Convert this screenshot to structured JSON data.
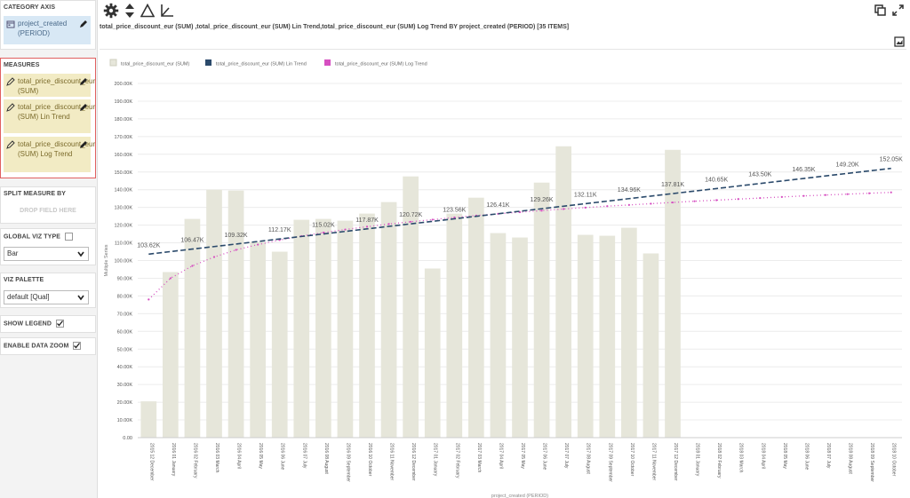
{
  "left_panel": {
    "category_axis": {
      "title": "CATEGORY AXIS",
      "field": "project_created (PERIOD)"
    },
    "measures": {
      "title": "MEASURES",
      "items": [
        {
          "label": "total_price_discount_eur (SUM)"
        },
        {
          "label": "total_price_discount_eur (SUM) Lin Trend"
        },
        {
          "label": "total_price_discount_eur (SUM) Log Trend"
        }
      ]
    },
    "split_measure": {
      "title": "SPLIT MEASURE BY",
      "drop_text": "DROP FIELD HERE"
    },
    "global_viz_type": {
      "title": "GLOBAL VIZ TYPE",
      "value": "Bar"
    },
    "viz_palette": {
      "title": "VIZ PALETTE",
      "value": "default [Qual]"
    },
    "show_legend": {
      "label": "SHOW LEGEND",
      "checked": true
    },
    "enable_data_zoom": {
      "label": "ENABLE DATA ZOOM",
      "checked": true
    }
  },
  "chart_title": "total_price_discount_eur (SUM) ,total_price_discount_eur (SUM) Lin Trend,total_price_discount_eur (SUM) Log Trend BY project_created (PERIOD) [35 ITEMS]",
  "colors": {
    "bar": "#e6e6da",
    "lin": "#2b4a6b",
    "log": "#d64fc1",
    "selected_border": "#e06060"
  },
  "chart_data": {
    "type": "bar",
    "ylabel": "Multiple Series",
    "xlabel": "project_created (PERIOD)",
    "ylim": [
      0,
      200000
    ],
    "yticks": [
      "0.00",
      "10.00K",
      "20.00K",
      "30.00K",
      "40.00K",
      "50.00K",
      "60.00K",
      "70.00K",
      "80.00K",
      "90.00K",
      "100.00K",
      "110.00K",
      "120.00K",
      "130.00K",
      "140.00K",
      "150.00K",
      "160.00K",
      "170.00K",
      "180.00K",
      "190.00K",
      "200.00K"
    ],
    "legend_position": "top-left",
    "categories": [
      "2015 12 December",
      "2016 01 January",
      "2016 02 February",
      "2016 03 March",
      "2016 04 April",
      "2016 05 May",
      "2016 06 June",
      "2016 07 July",
      "2016 08 August",
      "2016 09 September",
      "2016 10 October",
      "2016 11 November",
      "2016 12 December",
      "2017 01 January",
      "2017 02 February",
      "2017 03 March",
      "2017 04 April",
      "2017 05 May",
      "2017 06 June",
      "2017 07 July",
      "2017 08 August",
      "2017 09 September",
      "2017 10 October",
      "2017 11 November",
      "2017 12 December",
      "2018 01 January",
      "2018 02 February",
      "2018 03 March",
      "2018 04 April",
      "2018 05 May",
      "2018 06 June",
      "2018 07 July",
      "2018 08 August",
      "2018 09 September",
      "2018 10 October"
    ],
    "series": [
      {
        "name": "total_price_discount_eur (SUM)",
        "type": "bar",
        "values": [
          20500,
          93500,
          123500,
          140000,
          139500,
          110500,
          105000,
          123000,
          123500,
          122500,
          126500,
          133000,
          147500,
          95500,
          126500,
          135500,
          115500,
          113000,
          144000,
          164500,
          114500,
          114000,
          118500,
          104000,
          162500,
          null,
          null,
          null,
          null,
          null,
          null,
          null,
          null,
          null,
          null
        ]
      },
      {
        "name": "total_price_discount_eur (SUM) Lin Trend",
        "type": "line",
        "values": [
          103620,
          105050,
          106470,
          107900,
          109320,
          110750,
          112170,
          113600,
          115020,
          116450,
          117870,
          119300,
          120720,
          122140,
          123560,
          124990,
          126410,
          127840,
          129260,
          130690,
          132110,
          133540,
          134960,
          136390,
          137810,
          139230,
          140650,
          142080,
          143500,
          144930,
          146350,
          147780,
          149200,
          150630,
          152050
        ]
      },
      {
        "name": "total_price_discount_eur (SUM) Log Trend",
        "type": "line",
        "values": [
          78000,
          90000,
          97000,
          102000,
          106000,
          109000,
          111600,
          113800,
          115800,
          117500,
          119100,
          120600,
          121900,
          123100,
          124300,
          125400,
          126400,
          127300,
          128200,
          129100,
          129900,
          130700,
          131400,
          132100,
          132800,
          133500,
          134100,
          134700,
          135300,
          135900,
          136500,
          137000,
          137500,
          138000,
          138500
        ]
      }
    ],
    "data_labels": [
      {
        "index": 0,
        "text": "103.62K"
      },
      {
        "index": 2,
        "text": "106.47K"
      },
      {
        "index": 4,
        "text": "109.32K"
      },
      {
        "index": 6,
        "text": "112.17K"
      },
      {
        "index": 8,
        "text": "115.02K"
      },
      {
        "index": 10,
        "text": "117.87K"
      },
      {
        "index": 12,
        "text": "120.72K"
      },
      {
        "index": 14,
        "text": "123.56K"
      },
      {
        "index": 16,
        "text": "126.41K"
      },
      {
        "index": 18,
        "text": "129.26K"
      },
      {
        "index": 20,
        "text": "132.11K"
      },
      {
        "index": 22,
        "text": "134.96K"
      },
      {
        "index": 24,
        "text": "137.81K"
      },
      {
        "index": 26,
        "text": "140.65K"
      },
      {
        "index": 28,
        "text": "143.50K"
      },
      {
        "index": 30,
        "text": "146.35K"
      },
      {
        "index": 32,
        "text": "149.20K"
      },
      {
        "index": 34,
        "text": "152.05K"
      }
    ]
  }
}
